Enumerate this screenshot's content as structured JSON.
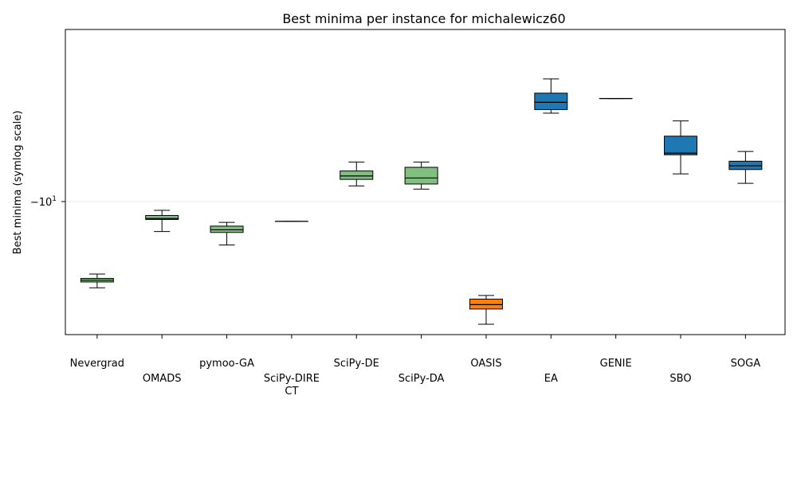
{
  "chart_data": {
    "type": "box",
    "title": "Best minima per instance for michalewicz60",
    "xlabel": "",
    "ylabel": "Best minima (symlog scale)",
    "yscale": "symlog",
    "ytick_label": "−10",
    "ytick_exponent": "1",
    "ytick_value": -10,
    "ylim": [
      -28.5,
      -3.1
    ],
    "grid": "horizontal",
    "colors": {
      "green": "#7fbf7f",
      "orange": "#ff7f0e",
      "blue": "#1f77b4"
    },
    "boxes": [
      {
        "label": "Nevergrad",
        "color": "green",
        "whislo": -21.0,
        "q1": -20.0,
        "med": -19.7,
        "q3": -19.4,
        "whishi": -18.7
      },
      {
        "label": "OMADS",
        "color": "green",
        "whislo": -13.0,
        "q1": -11.7,
        "med": -11.6,
        "q3": -11.3,
        "whishi": -10.8
      },
      {
        "label": "pymoo-GA",
        "color": "green",
        "whislo": -14.6,
        "q1": -13.1,
        "med": -12.8,
        "q3": -12.4,
        "whishi": -12.0
      },
      {
        "label": "SciPy-DIRECT",
        "label_lines": [
          "SciPy-DIRE",
          "CT"
        ],
        "color": "green",
        "whislo": -11.9,
        "q1": -11.9,
        "med": -11.9,
        "q3": -11.9,
        "whishi": -11.9
      },
      {
        "label": "SciPy-DE",
        "color": "green",
        "whislo": -8.7,
        "q1": -8.2,
        "med": -7.95,
        "q3": -7.6,
        "whishi": -7.0
      },
      {
        "label": "SciPy-DA",
        "color": "green",
        "whislo": -8.95,
        "q1": -8.55,
        "med": -8.1,
        "q3": -7.35,
        "whishi": -7.0
      },
      {
        "label": "OASIS",
        "color": "orange",
        "whislo": -28.5,
        "q1": -25.1,
        "med": -24.2,
        "q3": -23.1,
        "whishi": -22.4
      },
      {
        "label": "EA",
        "color": "blue",
        "whislo": -4.4,
        "q1": -4.25,
        "med": -3.95,
        "q3": -3.6,
        "whishi": -3.1
      },
      {
        "label": "GENIE",
        "color": "blue",
        "whislo": -3.8,
        "q1": -3.8,
        "med": -3.8,
        "q3": -3.8,
        "whishi": -3.8
      },
      {
        "label": "SBO",
        "color": "blue",
        "whislo": -7.8,
        "q1": -6.55,
        "med": -6.45,
        "q3": -5.5,
        "whishi": -4.75
      },
      {
        "label": "SOGA",
        "color": "blue",
        "whislo": -8.5,
        "q1": -7.5,
        "med": -7.25,
        "q3": -6.95,
        "whishi": -6.35
      }
    ]
  }
}
